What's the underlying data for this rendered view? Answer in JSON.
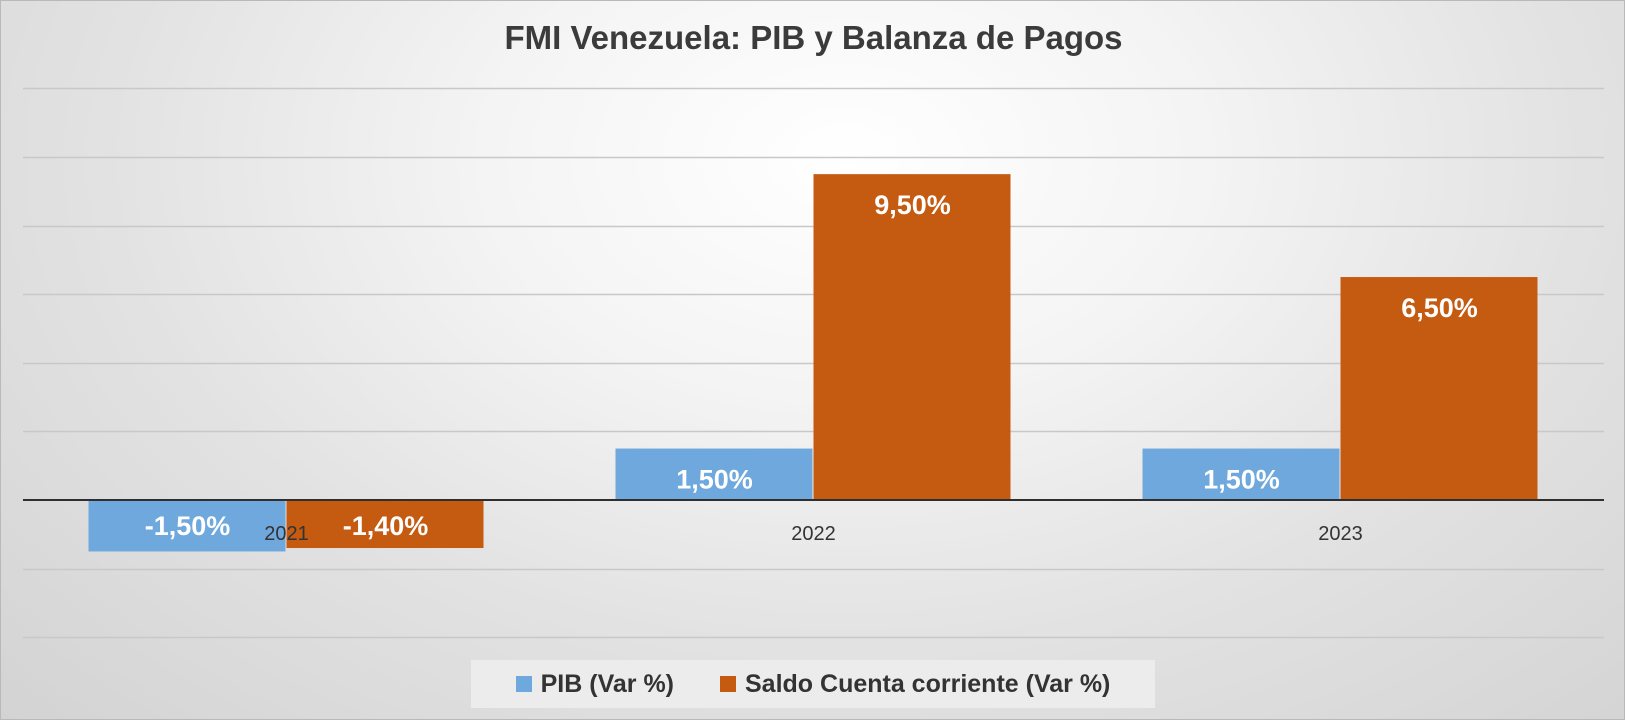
{
  "chart_data": {
    "type": "bar",
    "title": "FMI Venezuela: PIB y Balanza de Pagos",
    "categories": [
      "2021",
      "2022",
      "2023"
    ],
    "series": [
      {
        "name": "PIB (Var %)",
        "values": [
          -1.5,
          1.5,
          1.5
        ],
        "labels": [
          "-1,50%",
          "1,50%",
          "1,50%"
        ],
        "color": "#6fa8dc"
      },
      {
        "name": "Saldo Cuenta corriente (Var %)",
        "values": [
          -1.4,
          9.5,
          6.5
        ],
        "labels": [
          "-1,40%",
          "9,50%",
          "6,50%"
        ],
        "color": "#c55a11"
      }
    ],
    "ylim": [
      -4,
      12
    ],
    "gridline_step": 2,
    "grid": true,
    "y_tick_labels_shown": false,
    "legend_position": "bottom"
  }
}
